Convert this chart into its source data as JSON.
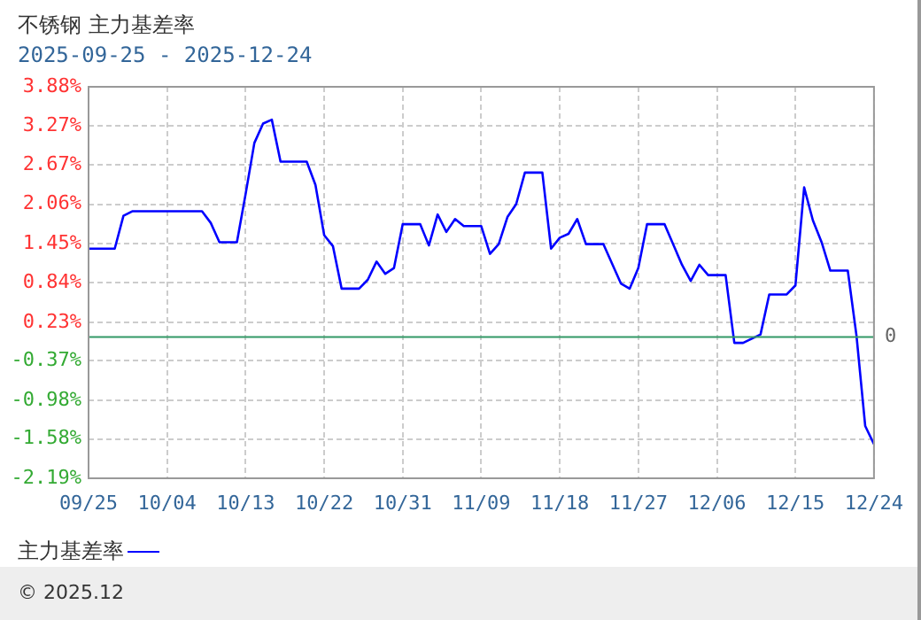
{
  "chart_data": {
    "type": "line",
    "title": "不锈钢 主力基差率",
    "subtitle": "2025-09-25 - 2025-12-24",
    "x": [
      "2025-09-25",
      "2025-09-28",
      "2025-09-29",
      "2025-09-30",
      "2025-10-08",
      "2025-10-09",
      "2025-10-10",
      "2025-10-12",
      "2025-10-13",
      "2025-10-14",
      "2025-10-15",
      "2025-10-16",
      "2025-10-17",
      "2025-10-20",
      "2025-10-21",
      "2025-10-22",
      "2025-10-23",
      "2025-10-24",
      "2025-10-26",
      "2025-10-27",
      "2025-10-28",
      "2025-10-29",
      "2025-10-30",
      "2025-10-31",
      "2025-11-02",
      "2025-11-03",
      "2025-11-04",
      "2025-11-05",
      "2025-11-06",
      "2025-11-07",
      "2025-11-09",
      "2025-11-10",
      "2025-11-11",
      "2025-11-12",
      "2025-11-13",
      "2025-11-14",
      "2025-11-16",
      "2025-11-17",
      "2025-11-18",
      "2025-11-19",
      "2025-11-20",
      "2025-11-21",
      "2025-11-23",
      "2025-11-25",
      "2025-11-26",
      "2025-11-27",
      "2025-11-28",
      "2025-11-30",
      "2025-12-02",
      "2025-12-03",
      "2025-12-04",
      "2025-12-05",
      "2025-12-07",
      "2025-12-08",
      "2025-12-09",
      "2025-12-11",
      "2025-12-12",
      "2025-12-14",
      "2025-12-15",
      "2025-12-16",
      "2025-12-17",
      "2025-12-18",
      "2025-12-19",
      "2025-12-21",
      "2025-12-22",
      "2025-12-23",
      "2025-12-24"
    ],
    "series": [
      {
        "name": "主力基差率",
        "color": "#0000ff",
        "values": [
          1.37,
          1.37,
          1.88,
          1.95,
          1.95,
          1.77,
          1.47,
          1.47,
          2.22,
          3.01,
          3.31,
          3.37,
          2.72,
          2.72,
          2.36,
          1.58,
          1.41,
          0.75,
          0.75,
          0.89,
          1.17,
          0.98,
          1.07,
          1.75,
          1.75,
          1.42,
          1.9,
          1.63,
          1.83,
          1.72,
          1.72,
          1.29,
          1.44,
          1.86,
          2.06,
          2.55,
          2.55,
          1.37,
          1.54,
          1.6,
          1.83,
          1.44,
          1.44,
          0.83,
          0.75,
          1.07,
          1.75,
          1.75,
          1.12,
          0.87,
          1.12,
          0.96,
          0.96,
          -0.09,
          -0.09,
          0.04,
          0.66,
          0.66,
          0.8,
          2.32,
          1.81,
          1.47,
          1.03,
          1.03,
          0.02,
          -1.38,
          -1.66
        ]
      }
    ],
    "xlim": [
      "2025-09-25",
      "2025-12-24"
    ],
    "xticks": [
      {
        "value": "2025-09-25",
        "label": "09/25"
      },
      {
        "value": "2025-10-04",
        "label": "10/04"
      },
      {
        "value": "2025-10-13",
        "label": "10/13"
      },
      {
        "value": "2025-10-22",
        "label": "10/22"
      },
      {
        "value": "2025-10-31",
        "label": "10/31"
      },
      {
        "value": "2025-11-09",
        "label": "11/09"
      },
      {
        "value": "2025-11-18",
        "label": "11/18"
      },
      {
        "value": "2025-11-27",
        "label": "11/27"
      },
      {
        "value": "2025-12-06",
        "label": "12/06"
      },
      {
        "value": "2025-12-15",
        "label": "12/15"
      },
      {
        "value": "2025-12-24",
        "label": "12/24"
      }
    ],
    "ylim": [
      -2.19,
      3.88
    ],
    "yticks": [
      {
        "value": 3.88,
        "label": "3.88%"
      },
      {
        "value": 3.27,
        "label": "3.27%"
      },
      {
        "value": 2.67,
        "label": "2.67%"
      },
      {
        "value": 2.06,
        "label": "2.06%"
      },
      {
        "value": 1.45,
        "label": "1.45%"
      },
      {
        "value": 0.84,
        "label": "0.84%"
      },
      {
        "value": 0.23,
        "label": "0.23%"
      },
      {
        "value": -0.37,
        "label": "-0.37%"
      },
      {
        "value": -0.98,
        "label": "-0.98%"
      },
      {
        "value": -1.58,
        "label": "-1.58%"
      },
      {
        "value": -2.19,
        "label": "-2.19%"
      }
    ],
    "ref_lines": [
      {
        "axis": "y",
        "value": 0,
        "label": "0",
        "color": "#339966"
      }
    ],
    "annotations": [
      "© 2025.12"
    ],
    "grid": true,
    "legend": "bottom",
    "marker": "none",
    "line_style": "solid"
  }
}
